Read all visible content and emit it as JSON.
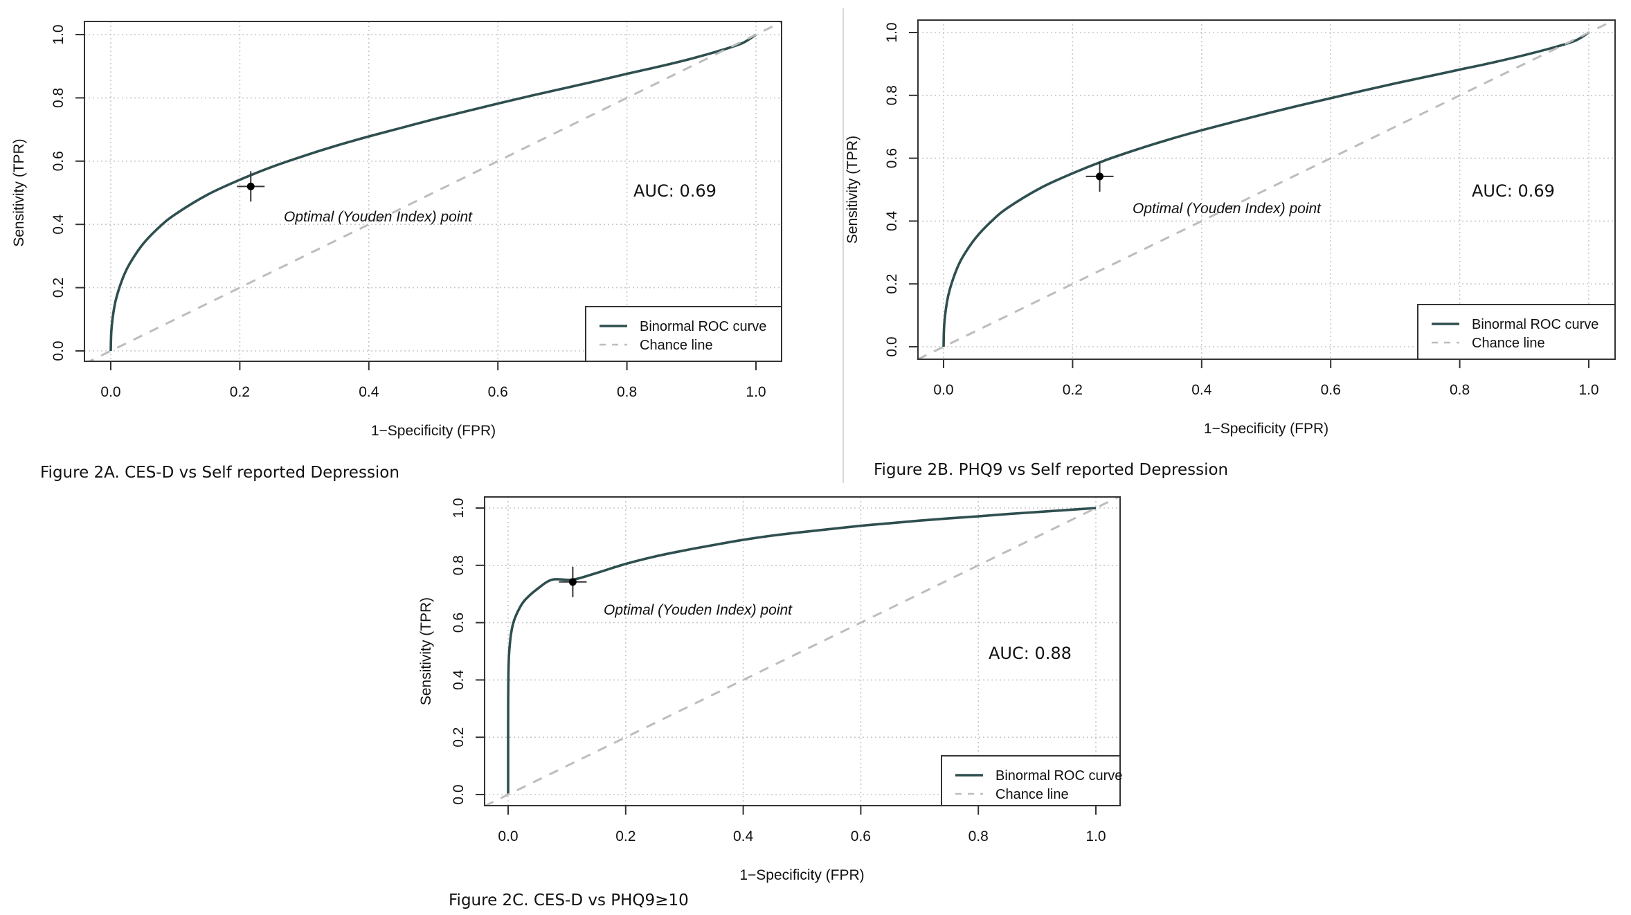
{
  "chart_data": [
    {
      "type": "line",
      "id": "fig2a",
      "caption": "Figure 2A. CES-D vs Self reported Depression",
      "xlabel": "1−Specificity (FPR)",
      "ylabel": "Sensitivity (TPR)",
      "xlim": [
        0,
        1
      ],
      "ylim": [
        0,
        1
      ],
      "xticks": [
        "0.0",
        "0.2",
        "0.4",
        "0.6",
        "0.8",
        "1.0"
      ],
      "yticks": [
        "0.0",
        "0.2",
        "0.4",
        "0.6",
        "0.8",
        "1.0"
      ],
      "grid": true,
      "legend_position": "bottom-right",
      "series": [
        {
          "name": "Binormal ROC curve",
          "color": "#2f4f4f",
          "style": "solid",
          "x": [
            0,
            0.001,
            0.005,
            0.01,
            0.02,
            0.03,
            0.05,
            0.075,
            0.1,
            0.15,
            0.2,
            0.25,
            0.3,
            0.35,
            0.4,
            0.45,
            0.5,
            0.55,
            0.6,
            0.65,
            0.7,
            0.75,
            0.8,
            0.85,
            0.9,
            0.95,
            0.98,
            1
          ],
          "y": [
            0,
            0.066,
            0.133,
            0.178,
            0.237,
            0.278,
            0.338,
            0.391,
            0.432,
            0.494,
            0.541,
            0.582,
            0.617,
            0.649,
            0.678,
            0.705,
            0.732,
            0.757,
            0.782,
            0.806,
            0.829,
            0.852,
            0.876,
            0.899,
            0.924,
            0.953,
            0.974,
            1
          ]
        },
        {
          "name": "Chance line",
          "color": "#bdbdbd",
          "style": "dashed",
          "x": [
            -0.04,
            1.04
          ],
          "y": [
            -0.04,
            1.04
          ]
        }
      ],
      "optimal_point": {
        "x": 0.217,
        "y": 0.52,
        "label": "Optimal (Youden Index) point"
      },
      "auc_label": "AUC: 0.69",
      "auc": 0.69
    },
    {
      "type": "line",
      "id": "fig2b",
      "caption": "Figure 2B. PHQ9 vs Self reported Depression",
      "xlabel": "1−Specificity (FPR)",
      "ylabel": "Sensitivity (TPR)",
      "xlim": [
        0,
        1
      ],
      "ylim": [
        0,
        1
      ],
      "xticks": [
        "0.0",
        "0.2",
        "0.4",
        "0.6",
        "0.8",
        "1.0"
      ],
      "yticks": [
        "0.0",
        "0.2",
        "0.4",
        "0.6",
        "0.8",
        "1.0"
      ],
      "grid": true,
      "legend_position": "bottom-right",
      "series": [
        {
          "name": "Binormal ROC curve",
          "color": "#2f4f4f",
          "style": "solid",
          "x": [
            0,
            0.001,
            0.005,
            0.01,
            0.02,
            0.03,
            0.05,
            0.075,
            0.1,
            0.15,
            0.2,
            0.25,
            0.3,
            0.35,
            0.4,
            0.45,
            0.5,
            0.55,
            0.6,
            0.65,
            0.7,
            0.75,
            0.8,
            0.85,
            0.9,
            0.95,
            0.98,
            1
          ],
          "y": [
            0,
            0.07,
            0.139,
            0.185,
            0.245,
            0.287,
            0.347,
            0.401,
            0.443,
            0.505,
            0.552,
            0.593,
            0.628,
            0.66,
            0.689,
            0.716,
            0.742,
            0.767,
            0.791,
            0.815,
            0.838,
            0.86,
            0.882,
            0.904,
            0.928,
            0.955,
            0.975,
            1
          ]
        },
        {
          "name": "Chance line",
          "color": "#bdbdbd",
          "style": "dashed",
          "x": [
            -0.04,
            1.04
          ],
          "y": [
            -0.04,
            1.04
          ]
        }
      ],
      "optimal_point": {
        "x": 0.242,
        "y": 0.542,
        "label": "Optimal (Youden Index) point"
      },
      "auc_label": "AUC: 0.69",
      "auc": 0.69
    },
    {
      "type": "line",
      "id": "fig2c",
      "caption": "Figure 2C. CES-D vs PHQ9≥10",
      "xlabel": "1−Specificity (FPR)",
      "ylabel": "Sensitivity (TPR)",
      "xlim": [
        0,
        1
      ],
      "ylim": [
        0,
        1
      ],
      "xticks": [
        "0.0",
        "0.2",
        "0.4",
        "0.6",
        "0.8",
        "1.0"
      ],
      "yticks": [
        "0.0",
        "0.2",
        "0.4",
        "0.6",
        "0.8",
        "1.0"
      ],
      "grid": true,
      "legend_position": "bottom-right",
      "series": [
        {
          "name": "Binormal ROC curve",
          "color": "#2f4f4f",
          "style": "solid",
          "x": [
            0,
            1e-05,
            0.0001,
            0.0005,
            0.001,
            0.002,
            0.005,
            0.01,
            0.02,
            0.03,
            0.05,
            0.075,
            0.11,
            0.15,
            0.2,
            0.25,
            0.3,
            0.35,
            0.4,
            0.45,
            0.5,
            0.55,
            0.6,
            0.65,
            0.7,
            0.75,
            0.8,
            0.85,
            0.9,
            0.95,
            1
          ],
          "y": [
            0,
            0.222,
            0.331,
            0.42,
            0.461,
            0.503,
            0.562,
            0.607,
            0.653,
            0.682,
            0.718,
            0.75,
            0.735,
            0.773,
            0.805,
            0.831,
            0.852,
            0.871,
            0.889,
            0.904,
            0.916,
            0.927,
            0.938,
            0.947,
            0.956,
            0.964,
            0.971,
            0.979,
            0.986,
            0.993,
            1
          ]
        },
        {
          "name": "Chance line",
          "color": "#bdbdbd",
          "style": "dashed",
          "x": [
            -0.04,
            1.04
          ],
          "y": [
            -0.04,
            1.04
          ]
        }
      ],
      "optimal_point": {
        "x": 0.11,
        "y": 0.742,
        "label": "Optimal (Youden Index) point"
      },
      "auc_label": "AUC: 0.88",
      "auc": 0.88
    }
  ]
}
